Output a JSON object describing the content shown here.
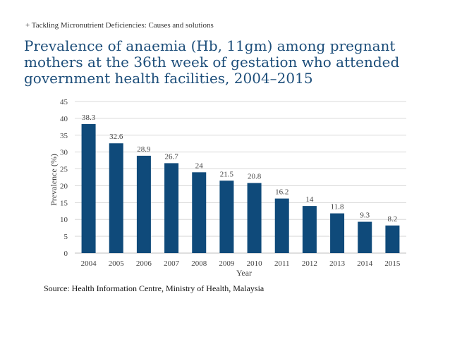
{
  "header": {
    "breadcrumb": "+ Tackling Micronutrient Deficiencies: Causes and solutions"
  },
  "title": "Prevalence of anaemia (Hb, 11gm) among pregnant mothers at the 36th week of gestation who attended government health facilities, 2004–2015",
  "source": "Source: Health Information Centre, Ministry of Health, Malaysia",
  "colors": {
    "bar": "#0f4a7a",
    "grid": "#d9d9d9",
    "title": "#1d4e7a"
  },
  "chart_data": {
    "type": "bar",
    "categories": [
      "2004",
      "2005",
      "2006",
      "2007",
      "2008",
      "2009",
      "2010",
      "2011",
      "2012",
      "2013",
      "2014",
      "2015"
    ],
    "values": [
      38.3,
      32.6,
      28.9,
      26.7,
      24,
      21.5,
      20.8,
      16.2,
      14,
      11.8,
      9.3,
      8.2
    ],
    "xlabel": "Year",
    "ylabel": "Prevalence (%)",
    "ylim": [
      0,
      45
    ],
    "yticks": [
      0,
      5,
      10,
      15,
      20,
      25,
      30,
      35,
      40,
      45
    ],
    "grid": true,
    "data_labels": true,
    "legend": "none"
  }
}
